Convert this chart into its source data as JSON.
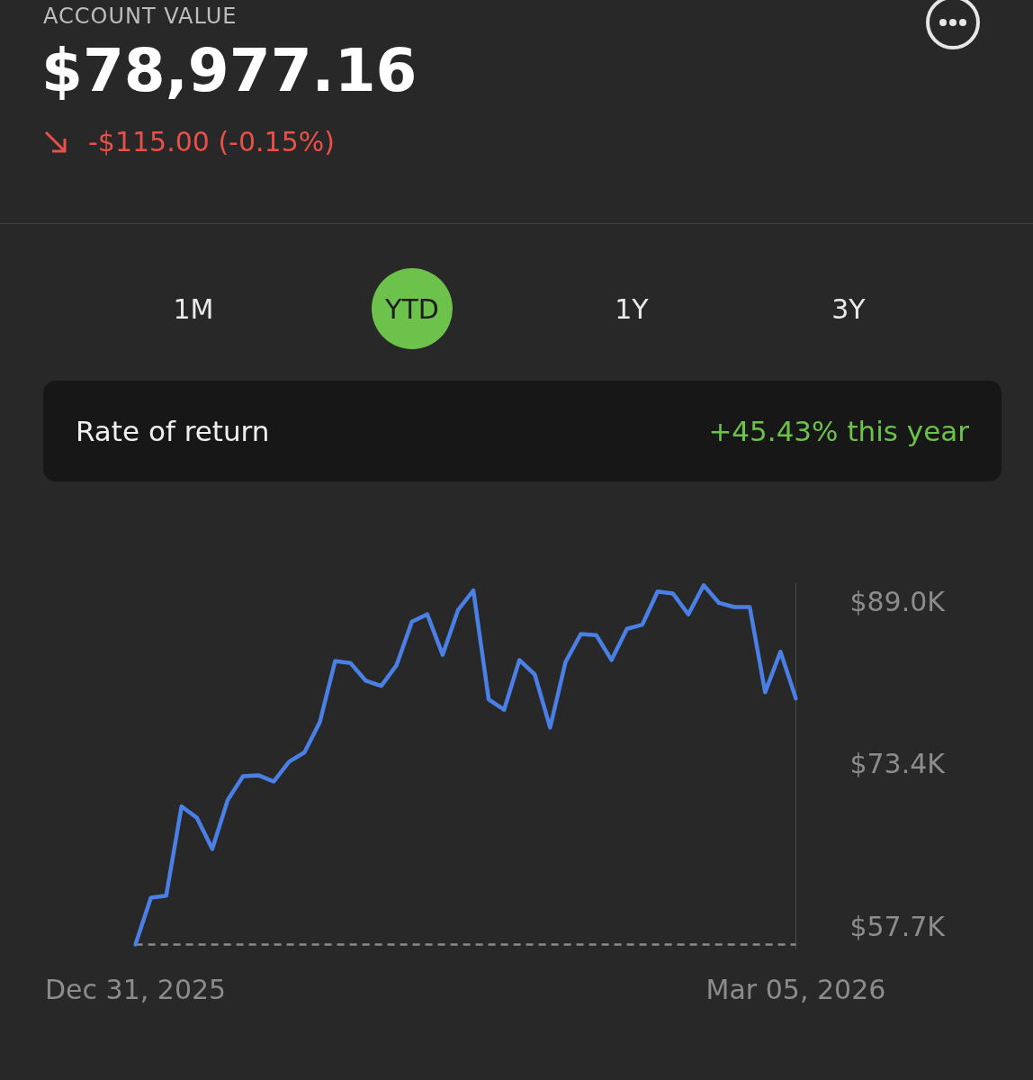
{
  "chart_data": {
    "type": "line",
    "title": "$78,977.16",
    "annotations": [
      "ACCOUNT VALUE",
      "-$115.00 (-0.15%)",
      "1M",
      "YTD",
      "1Y",
      "3Y",
      "Rate of return",
      "+45.43% this year"
    ],
    "categories": [
      "Dec 31, 2025",
      null,
      null,
      null,
      null,
      null,
      null,
      null,
      null,
      null,
      null,
      null,
      null,
      null,
      null,
      null,
      null,
      null,
      null,
      null,
      null,
      null,
      null,
      null,
      null,
      null,
      null,
      null,
      null,
      null,
      null,
      null,
      null,
      null,
      null,
      null,
      null,
      null,
      null,
      null,
      null,
      null,
      null,
      "Mar 05, 2026"
    ],
    "series": [
      {
        "color": "#4a7fe6",
        "values": [
          56.2,
          60.7,
          60.9,
          69.5,
          68.4,
          65.4,
          70.1,
          72.4,
          72.5,
          71.9,
          73.8,
          74.7,
          77.6,
          83.5,
          83.3,
          81.6,
          81.1,
          83.1,
          87.3,
          88.0,
          84.1,
          88.4,
          90.3,
          79.8,
          78.8,
          83.6,
          82.2,
          77.1,
          83.4,
          86.1,
          86.0,
          83.6,
          86.6,
          87.0,
          90.2,
          90.0,
          88.0,
          90.8,
          89.1,
          88.7,
          88.7,
          80.5,
          84.4,
          79.9
        ]
      }
    ],
    "ylim": [
      55.8,
      91.0
    ],
    "yticks": [
      {
        "value": 57.7,
        "label": "$57.7K"
      },
      {
        "value": 73.4,
        "label": "$73.4K"
      },
      {
        "value": 89.0,
        "label": "$89.0K"
      }
    ],
    "ref_lines": [
      {
        "axis": "y",
        "value": 56.2,
        "color": "#8a8a8a",
        "line_style": "dashed"
      }
    ],
    "grid": false,
    "legend": false,
    "marker": "none",
    "line_style": "solid"
  }
}
